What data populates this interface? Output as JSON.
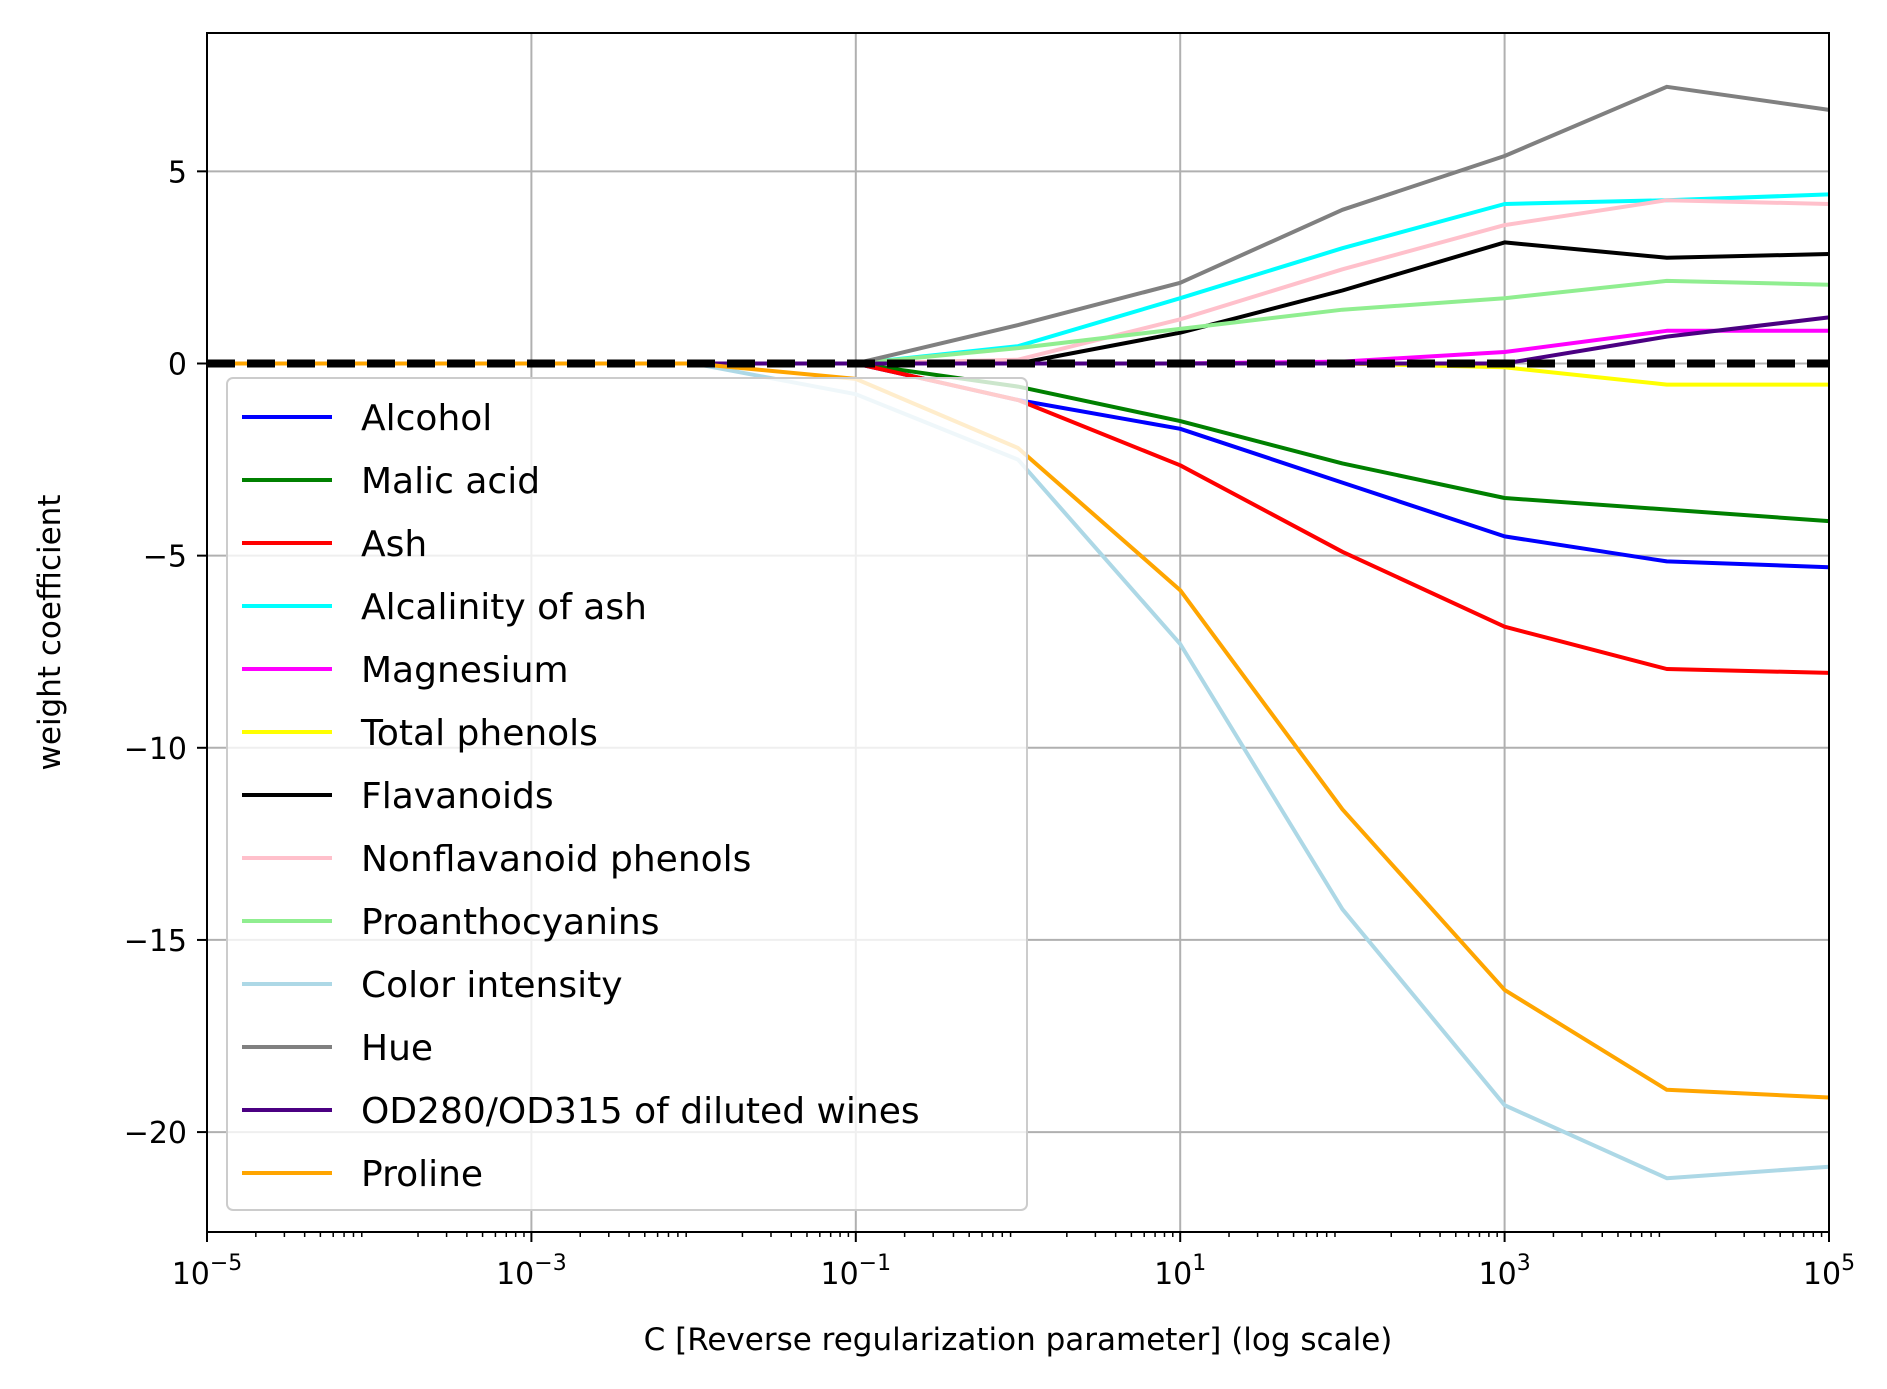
{
  "chart_data": {
    "type": "line",
    "title": "",
    "xlabel": "C [Reverse regularization parameter] (log scale)",
    "ylabel": "weight coefficient",
    "x_scale": "log",
    "xlim": [
      1e-05,
      100000
    ],
    "ylim": [
      -22.6,
      8.6
    ],
    "x_ticks": [
      {
        "value": 1e-05,
        "base": "10",
        "exp": "−5"
      },
      {
        "value": 0.001,
        "base": "10",
        "exp": "−3"
      },
      {
        "value": 0.1,
        "base": "10",
        "exp": "−1"
      },
      {
        "value": 10,
        "base": "10",
        "exp": "1"
      },
      {
        "value": 1000,
        "base": "10",
        "exp": "3"
      },
      {
        "value": 100000,
        "base": "10",
        "exp": "5"
      }
    ],
    "y_ticks": [
      {
        "value": 5,
        "label": "5"
      },
      {
        "value": 0,
        "label": "0"
      },
      {
        "value": -5,
        "label": "−5"
      },
      {
        "value": -10,
        "label": "−10"
      },
      {
        "value": -15,
        "label": "−15"
      },
      {
        "value": -20,
        "label": "−20"
      }
    ],
    "grid": true,
    "legend_position": "lower-left",
    "reference_line": {
      "y": 0,
      "style": "dashed",
      "color": "#000000"
    },
    "x": [
      1e-05,
      0.0001,
      0.001,
      0.01,
      0.1,
      1,
      10,
      100,
      1000,
      10000,
      100000
    ],
    "series": [
      {
        "name": "Alcohol",
        "color": "#0000ff",
        "values": [
          0,
          0,
          0,
          0,
          0,
          -0.95,
          -1.7,
          -3.1,
          -4.5,
          -5.15,
          -5.3
        ]
      },
      {
        "name": "Malic acid",
        "color": "#008000",
        "values": [
          0,
          0,
          0,
          0,
          0,
          -0.6,
          -1.5,
          -2.6,
          -3.5,
          -3.8,
          -4.1
        ]
      },
      {
        "name": "Ash",
        "color": "#ff0000",
        "values": [
          0,
          0,
          0,
          0,
          0,
          -0.95,
          -2.65,
          -4.9,
          -6.85,
          -7.95,
          -8.05
        ]
      },
      {
        "name": "Alcalinity of ash",
        "color": "#00ffff",
        "values": [
          0,
          0,
          0,
          0,
          0,
          0.45,
          1.7,
          3.0,
          4.15,
          4.25,
          4.4
        ]
      },
      {
        "name": "Magnesium",
        "color": "#ff00ff",
        "values": [
          0,
          0,
          0,
          0,
          0,
          0,
          0,
          0.05,
          0.3,
          0.85,
          0.85
        ]
      },
      {
        "name": "Total phenols",
        "color": "#ffff00",
        "values": [
          0,
          0,
          0,
          0,
          0,
          0,
          0,
          0,
          -0.1,
          -0.55,
          -0.55
        ]
      },
      {
        "name": "Flavanoids",
        "color": "#000000",
        "values": [
          0,
          0,
          0,
          0,
          0,
          0,
          0.8,
          1.9,
          3.15,
          2.75,
          2.85
        ]
      },
      {
        "name": "Nonflavanoid phenols",
        "color": "#ffc0cb",
        "values": [
          0,
          0,
          0,
          0,
          0,
          0.1,
          1.15,
          2.45,
          3.6,
          4.25,
          4.15
        ]
      },
      {
        "name": "Proanthocyanins",
        "color": "#90ee90",
        "values": [
          0,
          0,
          0,
          0,
          0,
          0.4,
          0.9,
          1.4,
          1.7,
          2.15,
          2.05
        ]
      },
      {
        "name": "Color intensity",
        "color": "#add8e6",
        "values": [
          0,
          0,
          0,
          0,
          -0.8,
          -2.5,
          -7.3,
          -14.2,
          -19.3,
          -21.2,
          -20.9
        ]
      },
      {
        "name": "Hue",
        "color": "#808080",
        "values": [
          0,
          0,
          0,
          0,
          0,
          1.0,
          2.1,
          4.0,
          5.4,
          7.2,
          6.6
        ]
      },
      {
        "name": "OD280/OD315 of diluted wines",
        "color": "#4b0082",
        "values": [
          0,
          0,
          0,
          0,
          0,
          0,
          0,
          0,
          0,
          0.7,
          1.2
        ]
      },
      {
        "name": "Proline",
        "color": "#ffa500",
        "values": [
          0,
          0,
          0,
          0,
          -0.4,
          -2.2,
          -5.9,
          -11.6,
          -16.3,
          -18.9,
          -19.1
        ]
      }
    ]
  }
}
